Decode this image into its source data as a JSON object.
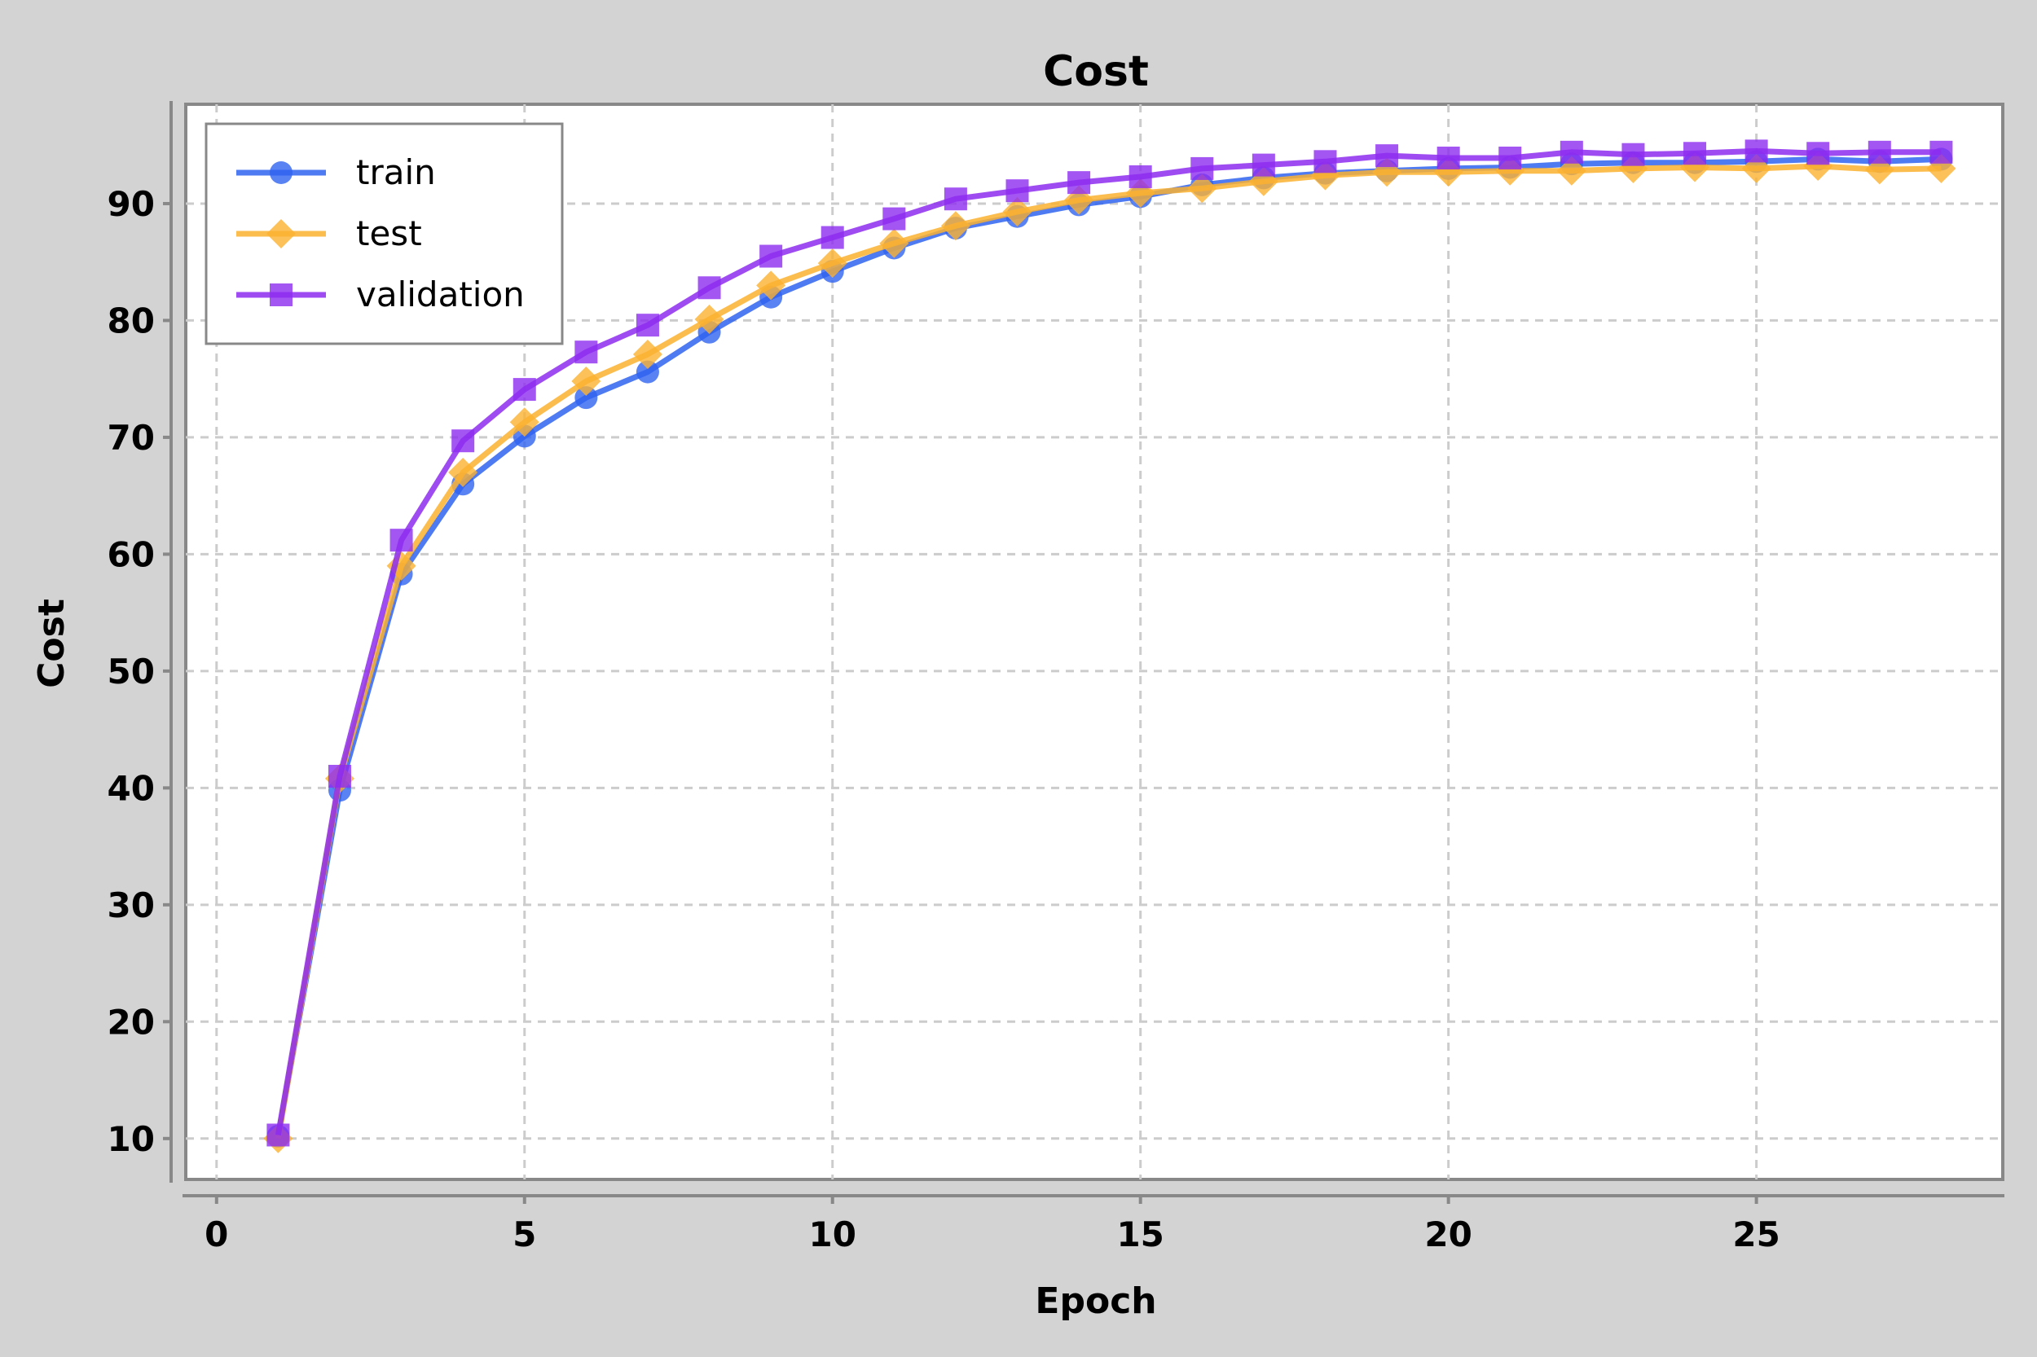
{
  "chart_data": {
    "type": "line",
    "title": "Cost",
    "xlabel": "Epoch",
    "ylabel": "Cost",
    "xlim": [
      -0.5,
      29
    ],
    "ylim": [
      6.5,
      98.5
    ],
    "xticks": [
      0,
      5,
      10,
      15,
      20,
      25
    ],
    "yticks": [
      10,
      20,
      30,
      40,
      50,
      60,
      70,
      80,
      90
    ],
    "grid": true,
    "legend_position": "top-left",
    "x": [
      1,
      2,
      3,
      4,
      5,
      6,
      7,
      8,
      9,
      10,
      11,
      12,
      13,
      14,
      15,
      16,
      17,
      18,
      19,
      20,
      21,
      22,
      23,
      24,
      25,
      26,
      27,
      28
    ],
    "series": [
      {
        "name": "train",
        "color": "#2f63f0",
        "marker": "circle",
        "values": [
          10.2,
          39.8,
          58.3,
          66.0,
          70.1,
          73.4,
          75.6,
          79.0,
          82.0,
          84.2,
          86.2,
          87.9,
          88.9,
          89.9,
          90.6,
          91.6,
          92.2,
          92.6,
          92.8,
          93.0,
          93.1,
          93.4,
          93.5,
          93.5,
          93.6,
          93.8,
          93.6,
          93.8
        ]
      },
      {
        "name": "test",
        "color": "#fbb130",
        "marker": "diamond",
        "values": [
          10.0,
          40.8,
          59.0,
          67.0,
          71.3,
          74.8,
          77.1,
          80.1,
          83.0,
          84.9,
          86.6,
          88.1,
          89.3,
          90.3,
          90.9,
          91.3,
          91.9,
          92.4,
          92.7,
          92.7,
          92.8,
          92.8,
          93.0,
          93.1,
          93.0,
          93.2,
          92.9,
          93.0
        ]
      },
      {
        "name": "validation",
        "color": "#8d2cf0",
        "marker": "square",
        "values": [
          10.3,
          41.0,
          61.2,
          69.7,
          74.1,
          77.3,
          79.6,
          82.8,
          85.5,
          87.1,
          88.7,
          90.4,
          91.1,
          91.8,
          92.3,
          93.0,
          93.3,
          93.6,
          94.1,
          93.9,
          93.9,
          94.4,
          94.2,
          94.3,
          94.5,
          94.3,
          94.4,
          94.4
        ]
      }
    ]
  }
}
